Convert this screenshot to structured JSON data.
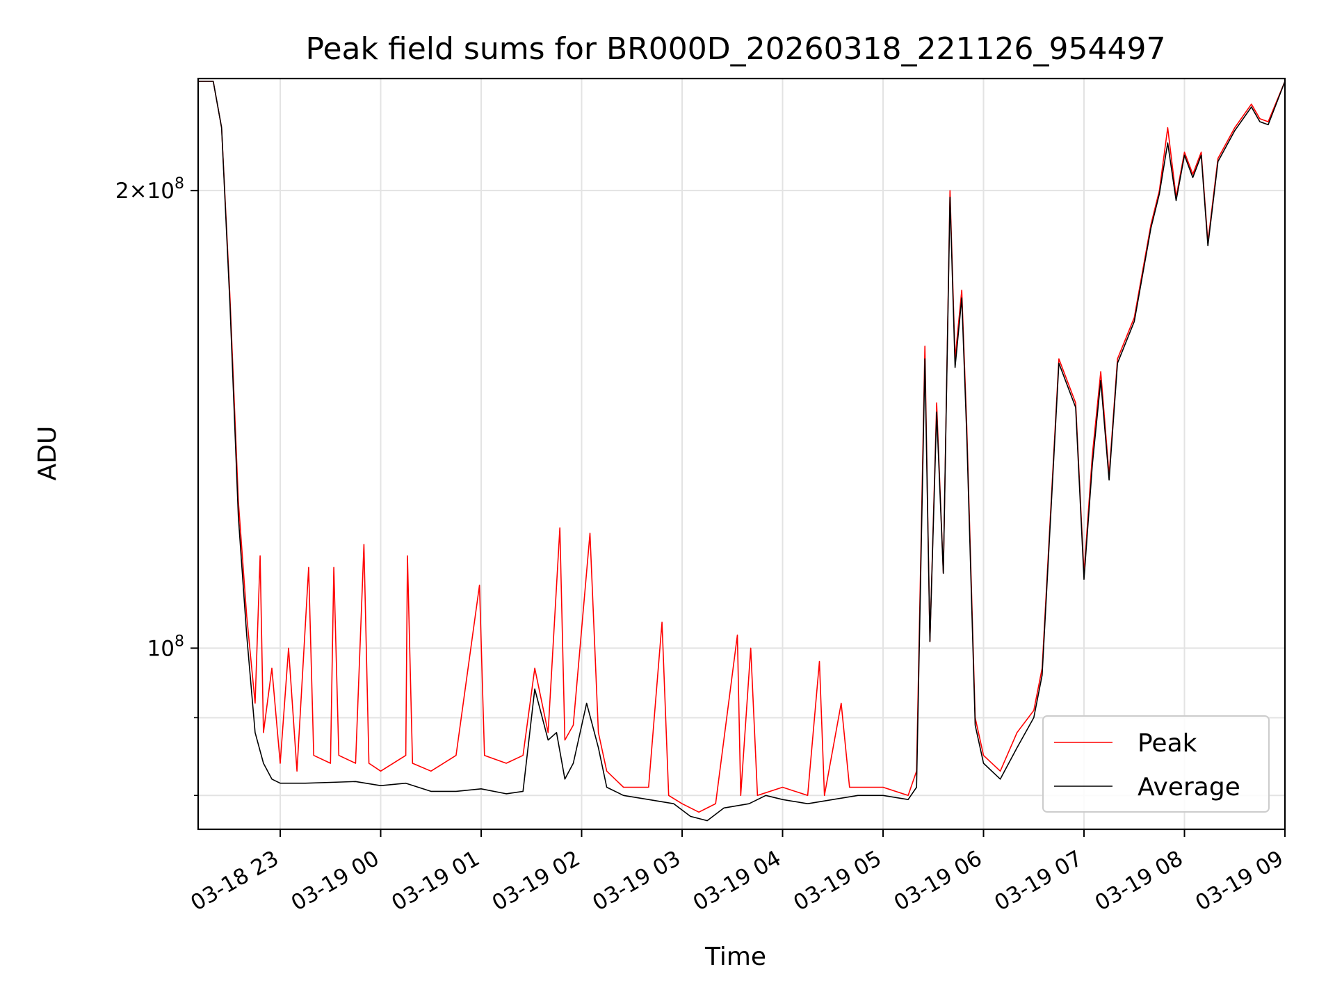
{
  "chart_data": {
    "type": "line",
    "title": "Peak field sums for BR000D_20260318_221126_954497",
    "xlabel": "Time",
    "ylabel": "ADU",
    "yscale": "log",
    "grid": true,
    "legend_position": "lower-right",
    "xlim": [
      "2026-03-18 22:11",
      "2026-03-19 09:00"
    ],
    "ylim": [
      76000000,
      237000000
    ],
    "x_ticks": [
      {
        "t": "2026-03-18 23:00",
        "label": "03-18 23"
      },
      {
        "t": "2026-03-19 00:00",
        "label": "03-19 00"
      },
      {
        "t": "2026-03-19 01:00",
        "label": "03-19 01"
      },
      {
        "t": "2026-03-19 02:00",
        "label": "03-19 02"
      },
      {
        "t": "2026-03-19 03:00",
        "label": "03-19 03"
      },
      {
        "t": "2026-03-19 04:00",
        "label": "03-19 04"
      },
      {
        "t": "2026-03-19 05:00",
        "label": "03-19 05"
      },
      {
        "t": "2026-03-19 06:00",
        "label": "03-19 06"
      },
      {
        "t": "2026-03-19 07:00",
        "label": "03-19 07"
      },
      {
        "t": "2026-03-19 08:00",
        "label": "03-19 08"
      },
      {
        "t": "2026-03-19 09:00",
        "label": "03-19 09"
      }
    ],
    "y_major_ticks": [
      {
        "value": 100000000,
        "base": "10",
        "exp": "8"
      },
      {
        "value": 200000000,
        "base": "2×10",
        "exp": "8"
      }
    ],
    "y_minor_ticks": [
      80000000,
      90000000
    ],
    "series": [
      {
        "name": "Peak",
        "color": "#ff0000",
        "points": [
          [
            "2026-03-18 22:11",
            236000000
          ],
          [
            "2026-03-18 22:20",
            236000000
          ],
          [
            "2026-03-18 22:25",
            220000000
          ],
          [
            "2026-03-18 22:30",
            170000000
          ],
          [
            "2026-03-18 22:35",
            125000000
          ],
          [
            "2026-03-18 22:40",
            105000000
          ],
          [
            "2026-03-18 22:45",
            92000000
          ],
          [
            "2026-03-18 22:48",
            115000000
          ],
          [
            "2026-03-18 22:50",
            88000000
          ],
          [
            "2026-03-18 22:55",
            97000000
          ],
          [
            "2026-03-18 23:00",
            84000000
          ],
          [
            "2026-03-18 23:05",
            100000000
          ],
          [
            "2026-03-18 23:10",
            83000000
          ],
          [
            "2026-03-18 23:17",
            113000000
          ],
          [
            "2026-03-18 23:20",
            85000000
          ],
          [
            "2026-03-18 23:30",
            84000000
          ],
          [
            "2026-03-18 23:32",
            113000000
          ],
          [
            "2026-03-18 23:35",
            85000000
          ],
          [
            "2026-03-18 23:45",
            84000000
          ],
          [
            "2026-03-18 23:50",
            117000000
          ],
          [
            "2026-03-18 23:53",
            84000000
          ],
          [
            "2026-03-19 00:00",
            83000000
          ],
          [
            "2026-03-19 00:15",
            85000000
          ],
          [
            "2026-03-19 00:16",
            115000000
          ],
          [
            "2026-03-19 00:19",
            84000000
          ],
          [
            "2026-03-19 00:30",
            83000000
          ],
          [
            "2026-03-19 00:45",
            85000000
          ],
          [
            "2026-03-19 00:59",
            110000000
          ],
          [
            "2026-03-19 01:02",
            85000000
          ],
          [
            "2026-03-19 01:15",
            84000000
          ],
          [
            "2026-03-19 01:25",
            85000000
          ],
          [
            "2026-03-19 01:32",
            97000000
          ],
          [
            "2026-03-19 01:40",
            88000000
          ],
          [
            "2026-03-19 01:47",
            120000000
          ],
          [
            "2026-03-19 01:50",
            87000000
          ],
          [
            "2026-03-19 01:55",
            89000000
          ],
          [
            "2026-03-19 02:05",
            119000000
          ],
          [
            "2026-03-19 02:10",
            88000000
          ],
          [
            "2026-03-19 02:15",
            83000000
          ],
          [
            "2026-03-19 02:25",
            81000000
          ],
          [
            "2026-03-19 02:40",
            81000000
          ],
          [
            "2026-03-19 02:48",
            104000000
          ],
          [
            "2026-03-19 02:52",
            80000000
          ],
          [
            "2026-03-19 03:00",
            79000000
          ],
          [
            "2026-03-19 03:10",
            78000000
          ],
          [
            "2026-03-19 03:20",
            79000000
          ],
          [
            "2026-03-19 03:33",
            102000000
          ],
          [
            "2026-03-19 03:35",
            80000000
          ],
          [
            "2026-03-19 03:41",
            100000000
          ],
          [
            "2026-03-19 03:45",
            80000000
          ],
          [
            "2026-03-19 04:00",
            81000000
          ],
          [
            "2026-03-19 04:15",
            80000000
          ],
          [
            "2026-03-19 04:22",
            98000000
          ],
          [
            "2026-03-19 04:25",
            80000000
          ],
          [
            "2026-03-19 04:35",
            92000000
          ],
          [
            "2026-03-19 04:40",
            81000000
          ],
          [
            "2026-03-19 05:00",
            81000000
          ],
          [
            "2026-03-19 05:15",
            80000000
          ],
          [
            "2026-03-19 05:20",
            83000000
          ],
          [
            "2026-03-19 05:25",
            158000000
          ],
          [
            "2026-03-19 05:28",
            101000000
          ],
          [
            "2026-03-19 05:32",
            145000000
          ],
          [
            "2026-03-19 05:36",
            112000000
          ],
          [
            "2026-03-19 05:40",
            200000000
          ],
          [
            "2026-03-19 05:43",
            155000000
          ],
          [
            "2026-03-19 05:47",
            172000000
          ],
          [
            "2026-03-19 05:50",
            140000000
          ],
          [
            "2026-03-19 05:55",
            90000000
          ],
          [
            "2026-03-19 06:00",
            85000000
          ],
          [
            "2026-03-19 06:10",
            83000000
          ],
          [
            "2026-03-19 06:20",
            88000000
          ],
          [
            "2026-03-19 06:30",
            91000000
          ],
          [
            "2026-03-19 06:35",
            97000000
          ],
          [
            "2026-03-19 06:45",
            155000000
          ],
          [
            "2026-03-19 06:55",
            145000000
          ],
          [
            "2026-03-19 07:00",
            112000000
          ],
          [
            "2026-03-19 07:05",
            134000000
          ],
          [
            "2026-03-19 07:10",
            152000000
          ],
          [
            "2026-03-19 07:15",
            130000000
          ],
          [
            "2026-03-19 07:20",
            155000000
          ],
          [
            "2026-03-19 07:30",
            165000000
          ],
          [
            "2026-03-19 07:40",
            190000000
          ],
          [
            "2026-03-19 07:45",
            200000000
          ],
          [
            "2026-03-19 07:50",
            220000000
          ],
          [
            "2026-03-19 07:55",
            198000000
          ],
          [
            "2026-03-19 08:00",
            212000000
          ],
          [
            "2026-03-19 08:05",
            205000000
          ],
          [
            "2026-03-19 08:10",
            212000000
          ],
          [
            "2026-03-19 08:14",
            185000000
          ],
          [
            "2026-03-19 08:20",
            210000000
          ],
          [
            "2026-03-19 08:30",
            220000000
          ],
          [
            "2026-03-19 08:40",
            228000000
          ],
          [
            "2026-03-19 08:45",
            223000000
          ],
          [
            "2026-03-19 08:50",
            222000000
          ],
          [
            "2026-03-19 09:00",
            236000000
          ]
        ]
      },
      {
        "name": "Average",
        "color": "#000000",
        "points": [
          [
            "2026-03-18 22:11",
            236000000
          ],
          [
            "2026-03-18 22:20",
            236000000
          ],
          [
            "2026-03-18 22:25",
            220000000
          ],
          [
            "2026-03-18 22:30",
            168000000
          ],
          [
            "2026-03-18 22:35",
            122000000
          ],
          [
            "2026-03-18 22:40",
            102000000
          ],
          [
            "2026-03-18 22:45",
            88000000
          ],
          [
            "2026-03-18 22:50",
            84000000
          ],
          [
            "2026-03-18 22:55",
            82000000
          ],
          [
            "2026-03-18 23:00",
            81500000
          ],
          [
            "2026-03-18 23:15",
            81500000
          ],
          [
            "2026-03-18 23:30",
            81600000
          ],
          [
            "2026-03-18 23:45",
            81700000
          ],
          [
            "2026-03-19 00:00",
            81200000
          ],
          [
            "2026-03-19 00:15",
            81500000
          ],
          [
            "2026-03-19 00:30",
            80500000
          ],
          [
            "2026-03-19 00:45",
            80500000
          ],
          [
            "2026-03-19 01:00",
            80800000
          ],
          [
            "2026-03-19 01:15",
            80200000
          ],
          [
            "2026-03-19 01:25",
            80500000
          ],
          [
            "2026-03-19 01:32",
            94000000
          ],
          [
            "2026-03-19 01:40",
            87000000
          ],
          [
            "2026-03-19 01:45",
            88000000
          ],
          [
            "2026-03-19 01:50",
            82000000
          ],
          [
            "2026-03-19 01:55",
            84000000
          ],
          [
            "2026-03-19 02:03",
            92000000
          ],
          [
            "2026-03-19 02:10",
            86000000
          ],
          [
            "2026-03-19 02:15",
            81000000
          ],
          [
            "2026-03-19 02:25",
            80000000
          ],
          [
            "2026-03-19 02:40",
            79500000
          ],
          [
            "2026-03-19 02:55",
            79000000
          ],
          [
            "2026-03-19 03:05",
            77500000
          ],
          [
            "2026-03-19 03:15",
            77000000
          ],
          [
            "2026-03-19 03:25",
            78500000
          ],
          [
            "2026-03-19 03:40",
            79000000
          ],
          [
            "2026-03-19 03:50",
            80000000
          ],
          [
            "2026-03-19 04:00",
            79500000
          ],
          [
            "2026-03-19 04:15",
            79000000
          ],
          [
            "2026-03-19 04:30",
            79500000
          ],
          [
            "2026-03-19 04:45",
            80000000
          ],
          [
            "2026-03-19 05:00",
            80000000
          ],
          [
            "2026-03-19 05:15",
            79500000
          ],
          [
            "2026-03-19 05:20",
            81000000
          ],
          [
            "2026-03-19 05:25",
            155000000
          ],
          [
            "2026-03-19 05:28",
            101000000
          ],
          [
            "2026-03-19 05:32",
            143000000
          ],
          [
            "2026-03-19 05:36",
            112000000
          ],
          [
            "2026-03-19 05:40",
            198000000
          ],
          [
            "2026-03-19 05:43",
            153000000
          ],
          [
            "2026-03-19 05:47",
            170000000
          ],
          [
            "2026-03-19 05:50",
            138000000
          ],
          [
            "2026-03-19 05:55",
            89000000
          ],
          [
            "2026-03-19 06:00",
            84000000
          ],
          [
            "2026-03-19 06:10",
            82000000
          ],
          [
            "2026-03-19 06:20",
            86000000
          ],
          [
            "2026-03-19 06:30",
            90000000
          ],
          [
            "2026-03-19 06:35",
            96000000
          ],
          [
            "2026-03-19 06:45",
            154000000
          ],
          [
            "2026-03-19 06:55",
            144000000
          ],
          [
            "2026-03-19 07:00",
            111000000
          ],
          [
            "2026-03-19 07:05",
            132000000
          ],
          [
            "2026-03-19 07:10",
            150000000
          ],
          [
            "2026-03-19 07:15",
            129000000
          ],
          [
            "2026-03-19 07:20",
            154000000
          ],
          [
            "2026-03-19 07:30",
            164000000
          ],
          [
            "2026-03-19 07:40",
            189000000
          ],
          [
            "2026-03-19 07:45",
            199000000
          ],
          [
            "2026-03-19 07:50",
            215000000
          ],
          [
            "2026-03-19 07:55",
            197000000
          ],
          [
            "2026-03-19 08:00",
            211000000
          ],
          [
            "2026-03-19 08:05",
            204000000
          ],
          [
            "2026-03-19 08:10",
            211000000
          ],
          [
            "2026-03-19 08:14",
            184000000
          ],
          [
            "2026-03-19 08:20",
            209000000
          ],
          [
            "2026-03-19 08:30",
            219000000
          ],
          [
            "2026-03-19 08:40",
            227000000
          ],
          [
            "2026-03-19 08:45",
            222000000
          ],
          [
            "2026-03-19 08:50",
            221000000
          ],
          [
            "2026-03-19 09:00",
            236000000
          ]
        ]
      }
    ]
  }
}
